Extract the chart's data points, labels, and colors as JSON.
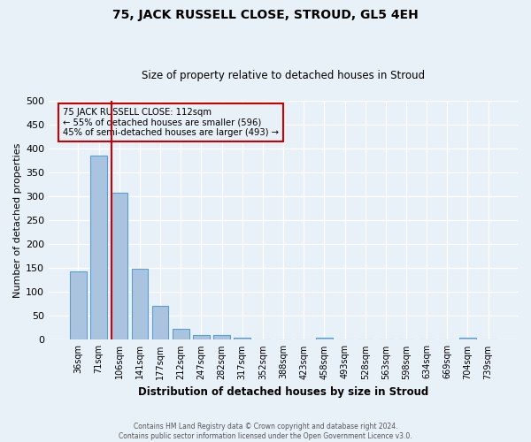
{
  "title": "75, JACK RUSSELL CLOSE, STROUD, GL5 4EH",
  "subtitle": "Size of property relative to detached houses in Stroud",
  "xlabel": "Distribution of detached houses by size in Stroud",
  "ylabel": "Number of detached properties",
  "footer_line1": "Contains HM Land Registry data © Crown copyright and database right 2024.",
  "footer_line2": "Contains public sector information licensed under the Open Government Licence v3.0.",
  "bin_labels": [
    "36sqm",
    "71sqm",
    "106sqm",
    "141sqm",
    "177sqm",
    "212sqm",
    "247sqm",
    "282sqm",
    "317sqm",
    "352sqm",
    "388sqm",
    "423sqm",
    "458sqm",
    "493sqm",
    "528sqm",
    "563sqm",
    "598sqm",
    "634sqm",
    "669sqm",
    "704sqm",
    "739sqm"
  ],
  "bar_values": [
    144,
    386,
    308,
    148,
    71,
    23,
    10,
    10,
    4,
    0,
    0,
    0,
    5,
    0,
    0,
    0,
    0,
    0,
    0,
    5,
    0
  ],
  "bar_color": "#aac4e0",
  "bar_edgecolor": "#5a9fd4",
  "background_color": "#e8f0f8",
  "grid_color": "#ffffff",
  "red_line_index": 2,
  "annotation_text": "75 JACK RUSSELL CLOSE: 112sqm\n← 55% of detached houses are smaller (596)\n45% of semi-detached houses are larger (493) →",
  "annotation_box_edgecolor": "#cc0000",
  "annotation_box_facecolor": "#e8f0f8",
  "ylim": [
    0,
    500
  ],
  "yticks": [
    0,
    50,
    100,
    150,
    200,
    250,
    300,
    350,
    400,
    450,
    500
  ]
}
